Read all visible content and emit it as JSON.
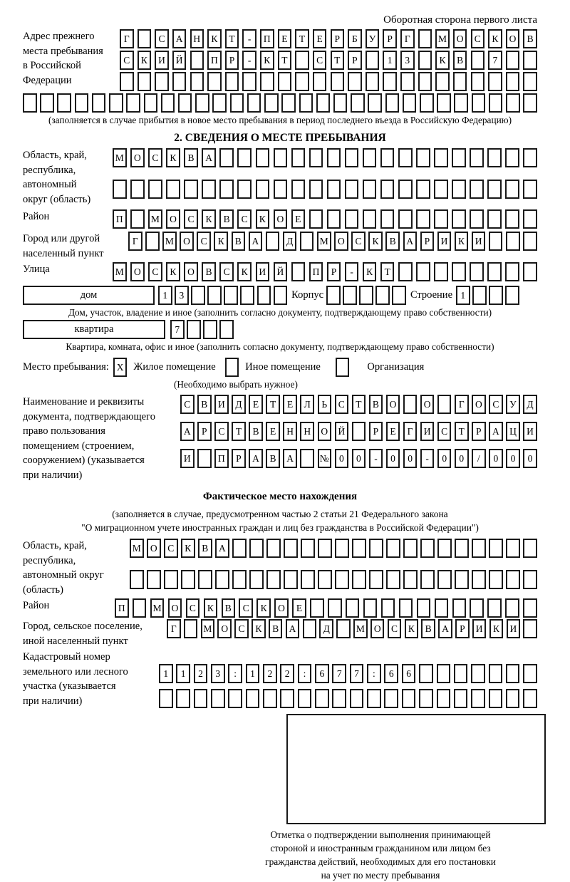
{
  "page": {
    "header_note": "Оборотная сторона первого листа"
  },
  "prev_address": {
    "label_lines": [
      "Адрес прежнего",
      "места пребывания",
      "в Российской",
      "Федерации"
    ],
    "rows": [
      {
        "cells": 24,
        "chars": "Г САНКТ-ПЕТЕРБУРГ МОСКОВ"
      },
      {
        "cells": 24,
        "chars": "СКИЙ ПР-КТ СТР 13 КВ 7"
      },
      {
        "cells": 24,
        "chars": ""
      }
    ],
    "extra_row": {
      "cells": 30,
      "chars": ""
    },
    "note": "(заполняется в случае прибытия в новое место пребывания в период последнего въезда в Российскую Федерацию)"
  },
  "section2": {
    "title": "2. СВЕДЕНИЯ О МЕСТЕ ПРЕБЫВАНИЯ",
    "region": {
      "label_lines": [
        "Область, край,",
        "республика,",
        "автономный",
        "округ (область)"
      ],
      "rows": [
        {
          "cells": 24,
          "chars": "МОСКВА"
        },
        {
          "cells": 24,
          "chars": ""
        }
      ]
    },
    "district": {
      "label": "Район",
      "row": {
        "cells": 24,
        "chars": "П МОСКВСКОЕ"
      }
    },
    "city": {
      "label_lines": [
        "Город или другой",
        "населенный пункт"
      ],
      "row": {
        "cells": 24,
        "chars": "Г МОСКВА Д МОСКВАРИКИ"
      }
    },
    "street": {
      "label": "Улица",
      "row": {
        "cells": 24,
        "chars": "МОСКОВСКИЙ ПР-КТ"
      }
    },
    "house": {
      "house_label": "дом",
      "house_row": {
        "cells": 8,
        "chars": "13"
      },
      "korpus_label": "Корпус",
      "korpus_row": {
        "cells": 5,
        "chars": ""
      },
      "stroenie_label": "Строение",
      "stroenie_row": {
        "cells": 4,
        "chars": "1"
      },
      "note": "Дом, участок, владение и иное (заполнить согласно документу, подтверждающему право собственности)"
    },
    "apartment": {
      "label": "квартира",
      "row": {
        "cells": 4,
        "chars": "7"
      },
      "note": "Квартира, комната, офис и иное (заполнить согласно документу, подтверждающему право собственности)"
    },
    "stay_type": {
      "label": "Место пребывания:",
      "options": [
        {
          "label": "Жилое помещение",
          "mark": "X"
        },
        {
          "label": "Иное помещение",
          "mark": ""
        },
        {
          "label": "Организация",
          "mark": ""
        }
      ],
      "note": "(Необходимо выбрать нужное)"
    },
    "document": {
      "label_lines": [
        "Наименование и реквизиты",
        "документа, подтверждающего",
        "право пользования",
        "помещением (строением,",
        "сооружением) (указывается",
        "при наличии)"
      ],
      "rows": [
        {
          "cells": 21,
          "chars": "СВИДЕТЕЛЬСТВО О ГОСУД"
        },
        {
          "cells": 21,
          "chars": "АРСТВЕННОЙ РЕГИСТРАЦИ"
        },
        {
          "cells": 21,
          "chars": "И ПРАВА №00-00-00/000"
        }
      ]
    }
  },
  "actual_location": {
    "title": "Фактическое место нахождения",
    "note_lines": [
      "(заполняется в случае, предусмотренном частью 2 статьи 21 Федерального закона",
      "\"О миграционном учете иностранных граждан и лиц без гражданства в Российской Федерации\")"
    ],
    "region": {
      "label_lines": [
        "Область, край,",
        "республика,",
        "автономный округ",
        "(область)"
      ],
      "rows": [
        {
          "cells": 24,
          "chars": "МОСКВА"
        },
        {
          "cells": 24,
          "chars": ""
        }
      ]
    },
    "district": {
      "label": "Район",
      "row": {
        "cells": 24,
        "chars": "П МОСКВСКОЕ"
      }
    },
    "city": {
      "label_lines": [
        "Город, сельское поселение,",
        "иной населенный пункт"
      ],
      "row": {
        "cells": 22,
        "chars": "Г МОСКВА Д МОСКВАРИКИ"
      }
    },
    "cadastral": {
      "label_lines": [
        "Кадастровый номер",
        "земельного или лесного",
        "участка (указывается",
        "при наличии)"
      ],
      "rows": [
        {
          "cells": 22,
          "chars": "1123:122:677:66"
        },
        {
          "cells": 22,
          "chars": ""
        }
      ]
    }
  },
  "stamp": {
    "caption_lines": [
      "Отметка о подтверждении выполнения принимающей",
      "стороной и иностранным гражданином или лицом без",
      "гражданства действий, необходимых для его постановки",
      "на учет по месту пребывания"
    ]
  }
}
